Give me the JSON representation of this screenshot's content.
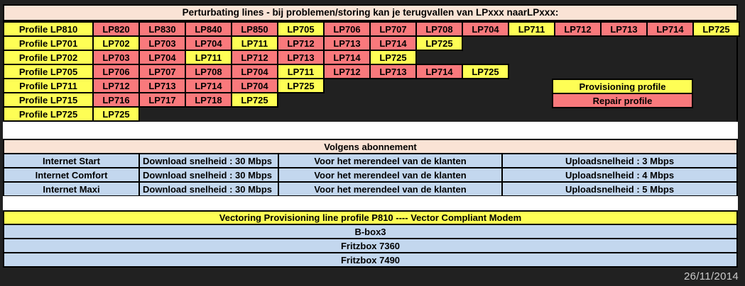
{
  "date": "26/11/2014",
  "colors": {
    "provisioning": "#FEFE55",
    "repair": "#F9797C",
    "header_peach": "#FAE3D5",
    "row_blue": "#C3D7EE",
    "background": "#212121",
    "grid_line": "#000000",
    "date_text": "#CBCBCB"
  },
  "perturbating": {
    "title": "Perturbating lines - bij problemen/storing kan je terugvallen van LPxxx naarLPxxx:",
    "rows": [
      {
        "cells": [
          {
            "label": "Profile LP810",
            "type": "provisioning"
          },
          {
            "label": "LP820",
            "type": "repair"
          },
          {
            "label": "LP830",
            "type": "repair"
          },
          {
            "label": "LP840",
            "type": "repair"
          },
          {
            "label": "LP850",
            "type": "repair"
          },
          {
            "label": "LP705",
            "type": "provisioning"
          },
          {
            "label": "LP706",
            "type": "repair"
          },
          {
            "label": "LP707",
            "type": "repair"
          },
          {
            "label": "LP708",
            "type": "repair"
          },
          {
            "label": "LP704",
            "type": "repair"
          },
          {
            "label": "LP711",
            "type": "provisioning"
          },
          {
            "label": "LP712",
            "type": "repair"
          },
          {
            "label": "LP713",
            "type": "repair"
          },
          {
            "label": "LP714",
            "type": "repair"
          },
          {
            "label": "LP725",
            "type": "provisioning"
          }
        ]
      },
      {
        "cells": [
          {
            "label": "Profile LP701",
            "type": "provisioning"
          },
          {
            "label": "LP702",
            "type": "provisioning"
          },
          {
            "label": "LP703",
            "type": "repair"
          },
          {
            "label": "LP704",
            "type": "repair"
          },
          {
            "label": "LP711",
            "type": "provisioning"
          },
          {
            "label": "LP712",
            "type": "repair"
          },
          {
            "label": "LP713",
            "type": "repair"
          },
          {
            "label": "LP714",
            "type": "repair"
          },
          {
            "label": "LP725",
            "type": "provisioning"
          }
        ]
      },
      {
        "cells": [
          {
            "label": "Profile LP702",
            "type": "provisioning"
          },
          {
            "label": "LP703",
            "type": "repair"
          },
          {
            "label": "LP704",
            "type": "repair"
          },
          {
            "label": "LP711",
            "type": "provisioning"
          },
          {
            "label": "LP712",
            "type": "repair"
          },
          {
            "label": "LP713",
            "type": "repair"
          },
          {
            "label": "LP714",
            "type": "repair"
          },
          {
            "label": "LP725",
            "type": "provisioning"
          }
        ]
      },
      {
        "cells": [
          {
            "label": "Profile LP705",
            "type": "provisioning"
          },
          {
            "label": "LP706",
            "type": "repair"
          },
          {
            "label": "LP707",
            "type": "repair"
          },
          {
            "label": "LP708",
            "type": "repair"
          },
          {
            "label": "LP704",
            "type": "repair"
          },
          {
            "label": "LP711",
            "type": "provisioning"
          },
          {
            "label": "LP712",
            "type": "repair"
          },
          {
            "label": "LP713",
            "type": "repair"
          },
          {
            "label": "LP714",
            "type": "repair"
          },
          {
            "label": "LP725",
            "type": "provisioning"
          }
        ]
      },
      {
        "cells": [
          {
            "label": "Profile LP711",
            "type": "provisioning"
          },
          {
            "label": "LP712",
            "type": "repair"
          },
          {
            "label": "LP713",
            "type": "repair"
          },
          {
            "label": "LP714",
            "type": "repair"
          },
          {
            "label": "LP704",
            "type": "repair"
          },
          {
            "label": "LP725",
            "type": "provisioning"
          }
        ]
      },
      {
        "cells": [
          {
            "label": "Profile LP715",
            "type": "provisioning"
          },
          {
            "label": "LP716",
            "type": "repair"
          },
          {
            "label": "LP717",
            "type": "repair"
          },
          {
            "label": "LP718",
            "type": "repair"
          },
          {
            "label": "LP725",
            "type": "provisioning"
          }
        ]
      },
      {
        "cells": [
          {
            "label": "Profile LP725",
            "type": "provisioning"
          },
          {
            "label": "LP725",
            "type": "provisioning"
          }
        ]
      }
    ]
  },
  "legend": {
    "provisioning": "Provisioning profile",
    "repair": "Repair profile"
  },
  "abonnement": {
    "title": "Volgens abonnement",
    "rows": [
      {
        "plan": "Internet Start",
        "download": "Download snelheid : 30 Mbps",
        "note": "Voor het merendeel van de klanten",
        "upload": "Uploadsnelheid : 3 Mbps"
      },
      {
        "plan": "Internet Comfort",
        "download": "Download snelheid : 30 Mbps",
        "note": "Voor het merendeel van de klanten",
        "upload": "Uploadsnelheid : 4 Mbps"
      },
      {
        "plan": "Internet Maxi",
        "download": "Download snelheid : 30 Mbps",
        "note": "Voor het merendeel van de klanten",
        "upload": "Uploadsnelheid : 5 Mbps"
      }
    ]
  },
  "vectoring": {
    "title": "Vectoring Provisioning line profile  P810 ---- Vector Compliant Modem",
    "modems": [
      "B-box3",
      "Fritzbox 7360",
      "Fritzbox 7490"
    ]
  }
}
